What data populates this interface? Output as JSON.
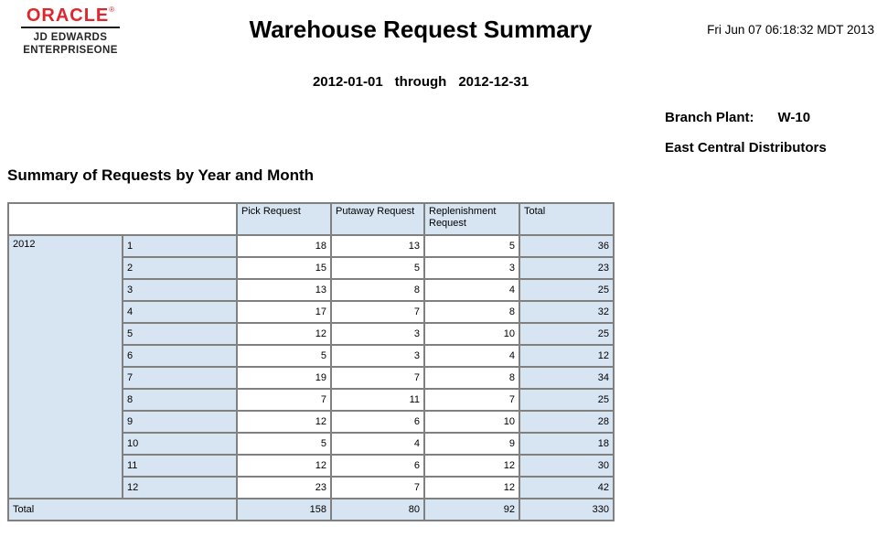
{
  "logo": {
    "brand": "ORACLE",
    "registered": "®",
    "sub1": "JD EDWARDS",
    "sub2": "ENTERPRISEONE"
  },
  "header": {
    "title": "Warehouse Request Summary",
    "timestamp": "Fri Jun 07 06:18:32 MDT 2013"
  },
  "date_range": {
    "from": "2012-01-01",
    "separator": "through",
    "to": "2012-12-31"
  },
  "branch": {
    "label": "Branch Plant:",
    "code": "W-10",
    "name": "East Central Distributors"
  },
  "section": {
    "heading": "Summary of Requests by Year and Month"
  },
  "chart_data": {
    "type": "table",
    "title": "Summary of Requests by Year and Month",
    "columns": [
      "Pick Request",
      "Putaway Request",
      "Replenishment Request",
      "Total"
    ],
    "year": "2012",
    "rows": [
      {
        "month": "1",
        "values": [
          18,
          13,
          5,
          36
        ]
      },
      {
        "month": "2",
        "values": [
          15,
          5,
          3,
          23
        ]
      },
      {
        "month": "3",
        "values": [
          13,
          8,
          4,
          25
        ]
      },
      {
        "month": "4",
        "values": [
          17,
          7,
          8,
          32
        ]
      },
      {
        "month": "5",
        "values": [
          12,
          3,
          10,
          25
        ]
      },
      {
        "month": "6",
        "values": [
          5,
          3,
          4,
          12
        ]
      },
      {
        "month": "7",
        "values": [
          19,
          7,
          8,
          34
        ]
      },
      {
        "month": "8",
        "values": [
          7,
          11,
          7,
          25
        ]
      },
      {
        "month": "9",
        "values": [
          12,
          6,
          10,
          28
        ]
      },
      {
        "month": "10",
        "values": [
          5,
          4,
          9,
          18
        ]
      },
      {
        "month": "11",
        "values": [
          12,
          6,
          12,
          30
        ]
      },
      {
        "month": "12",
        "values": [
          23,
          7,
          12,
          42
        ]
      }
    ],
    "total_label": "Total",
    "totals": [
      158,
      80,
      92,
      330
    ]
  },
  "colors": {
    "oracle_red": "#e0262d",
    "cell_blue": "#d7e5f3",
    "border_gray": "#808080"
  }
}
